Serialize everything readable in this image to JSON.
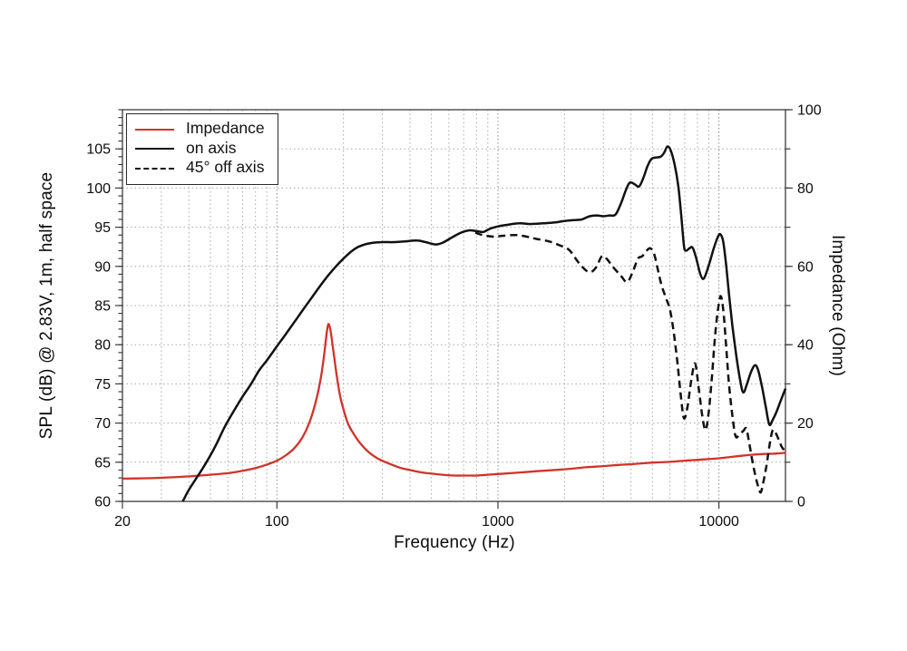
{
  "figure": {
    "background": "#ffffff"
  },
  "axes": {
    "x": {
      "label": "Frequency (Hz)",
      "scale": "log",
      "min": 20,
      "max": 20000,
      "labeled_ticks": [
        20,
        100,
        1000,
        10000
      ],
      "tick_labels": [
        "20",
        "100",
        "1000",
        "10000"
      ]
    },
    "y_left": {
      "label": "SPL (dB) @ 2.83V, 1m, half space",
      "min": 60,
      "max": 110,
      "labeled_ticks": [
        60,
        65,
        70,
        75,
        80,
        85,
        90,
        95,
        100,
        105
      ],
      "minor_step": 1,
      "grid_lines": [
        65,
        70,
        75,
        80,
        85,
        90,
        95,
        100,
        105
      ]
    },
    "y_right": {
      "label": "Impedance (Ohm)",
      "min": 0,
      "max": 100,
      "labeled_ticks": [
        0,
        20,
        40,
        60,
        80,
        100
      ],
      "minor_step": 10
    }
  },
  "legend": {
    "items": [
      {
        "label": "Impedance",
        "color": "#d23228",
        "style": "solid"
      },
      {
        "label": "on axis",
        "color": "#111111",
        "style": "solid"
      },
      {
        "label": "45° off axis",
        "color": "#111111",
        "style": "dashed"
      }
    ]
  },
  "colors": {
    "impedance": "#d23228",
    "spl": "#111111",
    "grid_minor": "#a8a8a8",
    "grid_major": "#8c8c8c",
    "frame": "#3c3c3c"
  },
  "chart_data": {
    "type": "line",
    "x_axis": {
      "label": "Frequency (Hz)",
      "scale": "log",
      "range": [
        20,
        20000
      ]
    },
    "y_left_range": [
      60,
      110
    ],
    "y_right_range": [
      0,
      100
    ],
    "grid": true,
    "legend_position": "top-left",
    "series": [
      {
        "name": "Impedance",
        "axis": "right",
        "unit": "Ohm",
        "color": "#d23228",
        "dash": "none",
        "points": [
          [
            20,
            5.8
          ],
          [
            25,
            5.9
          ],
          [
            32,
            6.1
          ],
          [
            40,
            6.4
          ],
          [
            50,
            6.8
          ],
          [
            60,
            7.2
          ],
          [
            70,
            7.8
          ],
          [
            80,
            8.5
          ],
          [
            90,
            9.4
          ],
          [
            100,
            10.4
          ],
          [
            110,
            11.8
          ],
          [
            120,
            13.6
          ],
          [
            130,
            16.2
          ],
          [
            140,
            20.0
          ],
          [
            150,
            25.5
          ],
          [
            158,
            31.5
          ],
          [
            164,
            38.0
          ],
          [
            168,
            43.0
          ],
          [
            171,
            45.3
          ],
          [
            175,
            43.5
          ],
          [
            180,
            38.5
          ],
          [
            186,
            32.5
          ],
          [
            193,
            27.0
          ],
          [
            200,
            23.5
          ],
          [
            210,
            19.8
          ],
          [
            225,
            16.8
          ],
          [
            240,
            14.6
          ],
          [
            260,
            12.6
          ],
          [
            285,
            11.0
          ],
          [
            320,
            9.7
          ],
          [
            360,
            8.6
          ],
          [
            400,
            8.0
          ],
          [
            450,
            7.4
          ],
          [
            500,
            7.1
          ],
          [
            560,
            6.8
          ],
          [
            640,
            6.6
          ],
          [
            720,
            6.6
          ],
          [
            800,
            6.6
          ],
          [
            900,
            6.8
          ],
          [
            1000,
            7.0
          ],
          [
            1200,
            7.3
          ],
          [
            1500,
            7.7
          ],
          [
            2000,
            8.2
          ],
          [
            2500,
            8.7
          ],
          [
            3000,
            9.0
          ],
          [
            3500,
            9.3
          ],
          [
            4000,
            9.5
          ],
          [
            5000,
            9.9
          ],
          [
            6000,
            10.1
          ],
          [
            7000,
            10.4
          ],
          [
            8000,
            10.6
          ],
          [
            9000,
            10.8
          ],
          [
            10000,
            11.0
          ],
          [
            12000,
            11.5
          ],
          [
            14000,
            11.9
          ],
          [
            16000,
            12.1
          ],
          [
            18000,
            12.2
          ],
          [
            20000,
            12.4
          ]
        ]
      },
      {
        "name": "on axis",
        "axis": "left",
        "unit": "dB",
        "color": "#111111",
        "dash": "none",
        "points": [
          [
            37.5,
            60.0
          ],
          [
            40,
            61.5
          ],
          [
            44,
            63.3
          ],
          [
            48,
            65.0
          ],
          [
            53,
            67.2
          ],
          [
            58,
            69.5
          ],
          [
            64,
            71.6
          ],
          [
            70,
            73.4
          ],
          [
            76,
            74.9
          ],
          [
            83,
            76.7
          ],
          [
            90,
            78.0
          ],
          [
            100,
            79.8
          ],
          [
            110,
            81.4
          ],
          [
            120,
            82.9
          ],
          [
            130,
            84.3
          ],
          [
            142,
            85.8
          ],
          [
            155,
            87.3
          ],
          [
            170,
            88.8
          ],
          [
            185,
            90.0
          ],
          [
            200,
            91.0
          ],
          [
            215,
            91.8
          ],
          [
            230,
            92.4
          ],
          [
            250,
            92.8
          ],
          [
            270,
            93.0
          ],
          [
            300,
            93.1
          ],
          [
            340,
            93.1
          ],
          [
            380,
            93.2
          ],
          [
            430,
            93.3
          ],
          [
            470,
            93.1
          ],
          [
            520,
            92.8
          ],
          [
            560,
            93.0
          ],
          [
            620,
            93.7
          ],
          [
            680,
            94.3
          ],
          [
            740,
            94.6
          ],
          [
            800,
            94.5
          ],
          [
            860,
            94.4
          ],
          [
            920,
            94.8
          ],
          [
            1000,
            95.1
          ],
          [
            1100,
            95.3
          ],
          [
            1250,
            95.5
          ],
          [
            1400,
            95.4
          ],
          [
            1600,
            95.5
          ],
          [
            1800,
            95.6
          ],
          [
            2000,
            95.8
          ],
          [
            2200,
            95.9
          ],
          [
            2400,
            96.0
          ],
          [
            2600,
            96.4
          ],
          [
            2800,
            96.5
          ],
          [
            3000,
            96.4
          ],
          [
            3200,
            96.5
          ],
          [
            3400,
            96.6
          ],
          [
            3600,
            98.0
          ],
          [
            3800,
            99.8
          ],
          [
            3950,
            100.7
          ],
          [
            4150,
            100.5
          ],
          [
            4350,
            100.2
          ],
          [
            4550,
            101.3
          ],
          [
            4750,
            102.8
          ],
          [
            4950,
            103.7
          ],
          [
            5200,
            103.9
          ],
          [
            5450,
            104.0
          ],
          [
            5650,
            104.5
          ],
          [
            5850,
            105.3
          ],
          [
            6050,
            104.8
          ],
          [
            6300,
            103.0
          ],
          [
            6550,
            100.2
          ],
          [
            6750,
            96.5
          ],
          [
            6950,
            92.6
          ],
          [
            7100,
            92.0
          ],
          [
            7350,
            92.3
          ],
          [
            7600,
            92.4
          ],
          [
            7900,
            91.0
          ],
          [
            8200,
            89.2
          ],
          [
            8450,
            88.4
          ],
          [
            8700,
            88.9
          ],
          [
            9100,
            90.6
          ],
          [
            9500,
            92.4
          ],
          [
            9900,
            93.8
          ],
          [
            10150,
            94.1
          ],
          [
            10450,
            93.2
          ],
          [
            10750,
            90.5
          ],
          [
            11100,
            86.5
          ],
          [
            11500,
            82.5
          ],
          [
            12000,
            78.5
          ],
          [
            12500,
            75.3
          ],
          [
            12900,
            73.9
          ],
          [
            13400,
            75.0
          ],
          [
            14000,
            76.6
          ],
          [
            14600,
            77.4
          ],
          [
            15100,
            76.6
          ],
          [
            15700,
            74.5
          ],
          [
            16300,
            72.0
          ],
          [
            16900,
            69.8
          ],
          [
            17500,
            70.4
          ],
          [
            18200,
            71.4
          ],
          [
            19000,
            72.8
          ],
          [
            20000,
            74.4
          ]
        ]
      },
      {
        "name": "45° off axis",
        "axis": "left",
        "unit": "dB",
        "color": "#111111",
        "dash": "8 5",
        "points": [
          [
            790,
            94.3
          ],
          [
            850,
            94.0
          ],
          [
            950,
            93.8
          ],
          [
            1050,
            93.9
          ],
          [
            1200,
            94.0
          ],
          [
            1350,
            93.8
          ],
          [
            1500,
            93.5
          ],
          [
            1700,
            93.2
          ],
          [
            1900,
            92.7
          ],
          [
            2100,
            92.1
          ],
          [
            2300,
            90.6
          ],
          [
            2500,
            89.5
          ],
          [
            2650,
            89.3
          ],
          [
            2800,
            90.0
          ],
          [
            2950,
            91.3
          ],
          [
            3100,
            91.0
          ],
          [
            3300,
            90.0
          ],
          [
            3600,
            88.8
          ],
          [
            3850,
            88.0
          ],
          [
            4100,
            89.5
          ],
          [
            4300,
            91.0
          ],
          [
            4500,
            91.3
          ],
          [
            4700,
            92.0
          ],
          [
            4900,
            92.3
          ],
          [
            5100,
            91.5
          ],
          [
            5300,
            89.5
          ],
          [
            5500,
            87.6
          ],
          [
            5750,
            86.0
          ],
          [
            6000,
            84.5
          ],
          [
            6250,
            81.5
          ],
          [
            6500,
            77.5
          ],
          [
            6750,
            73.0
          ],
          [
            6950,
            70.6
          ],
          [
            7200,
            72.0
          ],
          [
            7500,
            75.5
          ],
          [
            7800,
            77.6
          ],
          [
            8100,
            74.5
          ],
          [
            8400,
            71.0
          ],
          [
            8700,
            69.1
          ],
          [
            9000,
            71.5
          ],
          [
            9300,
            76.0
          ],
          [
            9600,
            81.0
          ],
          [
            9900,
            84.5
          ],
          [
            10200,
            86.2
          ],
          [
            10500,
            84.0
          ],
          [
            10800,
            79.5
          ],
          [
            11100,
            75.0
          ],
          [
            11500,
            71.0
          ],
          [
            11900,
            68.3
          ],
          [
            12400,
            68.6
          ],
          [
            12900,
            69.0
          ],
          [
            13300,
            69.3
          ],
          [
            13700,
            67.5
          ],
          [
            14200,
            65.0
          ],
          [
            14700,
            63.0
          ],
          [
            15200,
            61.5
          ],
          [
            15500,
            61.2
          ],
          [
            15900,
            62.5
          ],
          [
            16400,
            64.5
          ],
          [
            16900,
            67.0
          ],
          [
            17400,
            68.9
          ],
          [
            17700,
            69.1
          ],
          [
            18100,
            68.7
          ],
          [
            18700,
            67.8
          ],
          [
            19300,
            66.9
          ],
          [
            20000,
            66.4
          ]
        ]
      }
    ]
  }
}
